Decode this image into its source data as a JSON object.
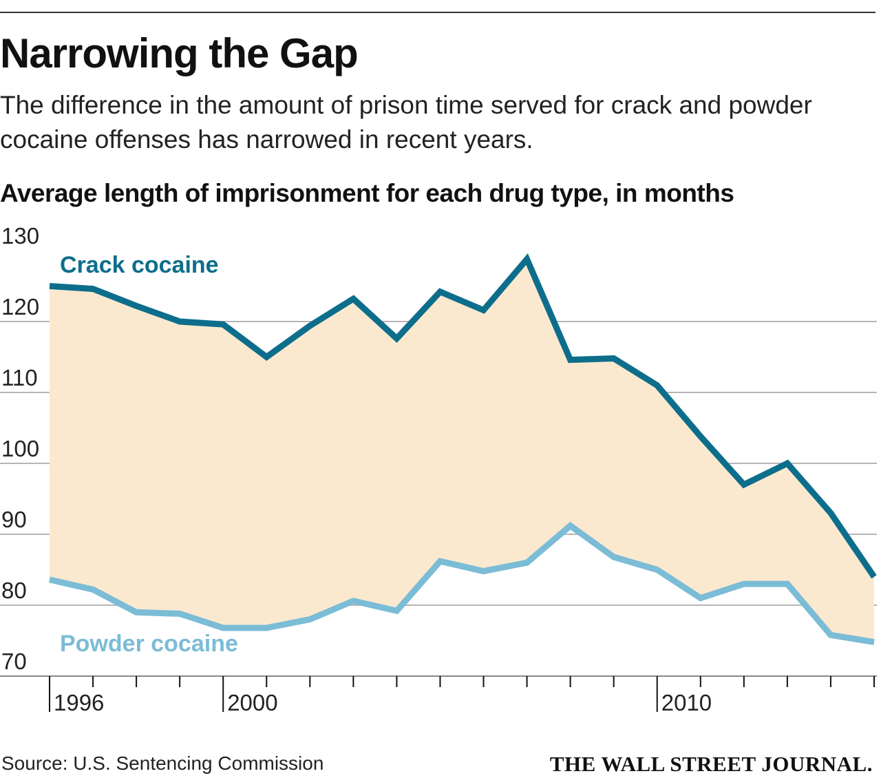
{
  "header": {
    "title": "Narrowing the Gap",
    "subtitle": "The difference in the amount of prison time served for crack and powder cocaine offenses has narrowed in recent years.",
    "axis_title": "Average length of imprisonment for each drug type, in months"
  },
  "footer": {
    "source": "Source: U.S. Sentencing Commission",
    "brand": "THE WALL STREET JOURNAL."
  },
  "colors": {
    "crack": "#0d6e8c",
    "powder": "#7bbcd6",
    "gap_fill": "#fbe9cf",
    "grid": "#b5b5b5"
  },
  "chart_data": {
    "type": "line",
    "x": [
      1996,
      1997,
      1998,
      1999,
      2000,
      2001,
      2002,
      2003,
      2004,
      2005,
      2006,
      2007,
      2008,
      2009,
      2010,
      2011,
      2012,
      2013,
      2014,
      2015
    ],
    "series": [
      {
        "name": "Crack cocaine",
        "values": [
          125,
          124.6,
          122.2,
          120,
          119.6,
          115,
          119.4,
          123.2,
          117.6,
          124.2,
          121.6,
          128.8,
          114.6,
          114.8,
          111,
          103.8,
          97,
          100,
          93,
          84
        ]
      },
      {
        "name": "Powder cocaine",
        "values": [
          83.6,
          82.2,
          79,
          78.8,
          76.8,
          76.8,
          78,
          80.6,
          79.2,
          86.2,
          84.8,
          86,
          91.2,
          86.8,
          85,
          81,
          83,
          83,
          75.8,
          74.8
        ]
      }
    ],
    "ylim": [
      70,
      130
    ],
    "yticks": [
      70,
      80,
      90,
      100,
      110,
      120,
      130
    ],
    "xlim": [
      1996,
      2015
    ],
    "xticks_labeled": [
      1996,
      2000,
      2010
    ],
    "grid": true,
    "shaded_between_series": true
  }
}
